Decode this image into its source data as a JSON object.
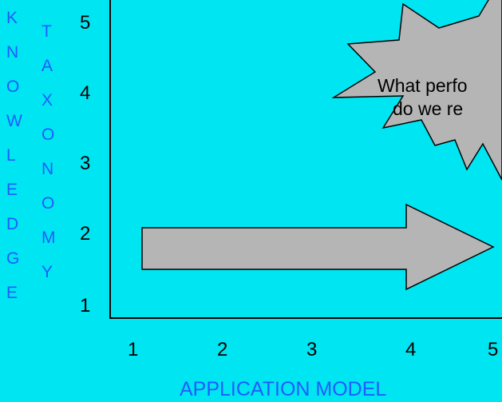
{
  "y_axis": {
    "word_1": [
      "K",
      "N",
      "O",
      "W",
      "L",
      "E",
      "D",
      "G",
      "E"
    ],
    "word_2": [
      "T",
      "A",
      "X",
      "O",
      "N",
      "O",
      "M",
      "Y"
    ],
    "ticks": [
      "5",
      "4",
      "3",
      "2",
      "1"
    ]
  },
  "x_axis": {
    "ticks": [
      "1",
      "2",
      "3",
      "4",
      "5"
    ],
    "label": "APPLICATION MODEL"
  },
  "callout": {
    "line_1": "What perfo",
    "line_2": "do we re"
  },
  "colors": {
    "background": "#00e5f2",
    "shape_fill": "#b5b5b5",
    "axis_label": "#1f5cff"
  }
}
